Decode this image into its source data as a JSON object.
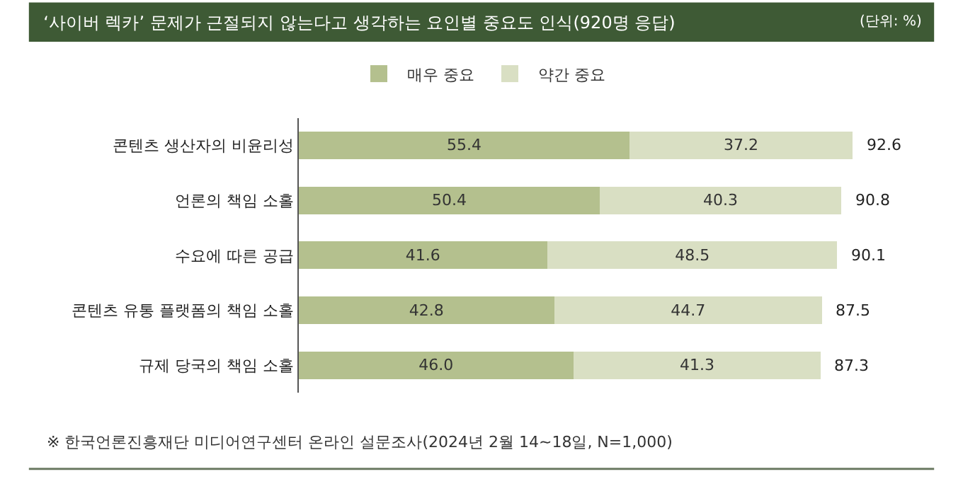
{
  "chart_data": {
    "type": "bar",
    "orientation": "horizontal",
    "stacked": true,
    "title": "‘사이버 렉카’ 문제가 근절되지 않는다고 생각하는 요인별 중요도 인식(920명 응답)",
    "annotations": [
      "(단위: %)",
      "※ 한국언론진흥재단 미디어연구센터 온라인 설문조사(2024년 2월 14~18일, N=1,000)"
    ],
    "categories": [
      "콘텐츠 생산자의 비윤리성",
      "언론의 책임 소홀",
      "수요에 따른 공급",
      "콘텐츠 유통 플랫폼의 책임 소홀",
      "규제 당국의 책임 소홀"
    ],
    "series": [
      {
        "name": "매우 중요",
        "color": "#b4c08e",
        "values": [
          55.4,
          50.4,
          41.6,
          42.8,
          46.0
        ],
        "value_labels": [
          "55.4",
          "50.4",
          "41.6",
          "42.8",
          "46.0"
        ]
      },
      {
        "name": "약간 중요",
        "color": "#d9dfc3",
        "values": [
          37.2,
          40.3,
          48.5,
          44.7,
          41.3
        ],
        "value_labels": [
          "37.2",
          "40.3",
          "48.5",
          "44.7",
          "41.3"
        ]
      }
    ],
    "totals": [
      "92.6",
      "90.8",
      "90.1",
      "87.5",
      "87.3"
    ],
    "legend": "top"
  }
}
